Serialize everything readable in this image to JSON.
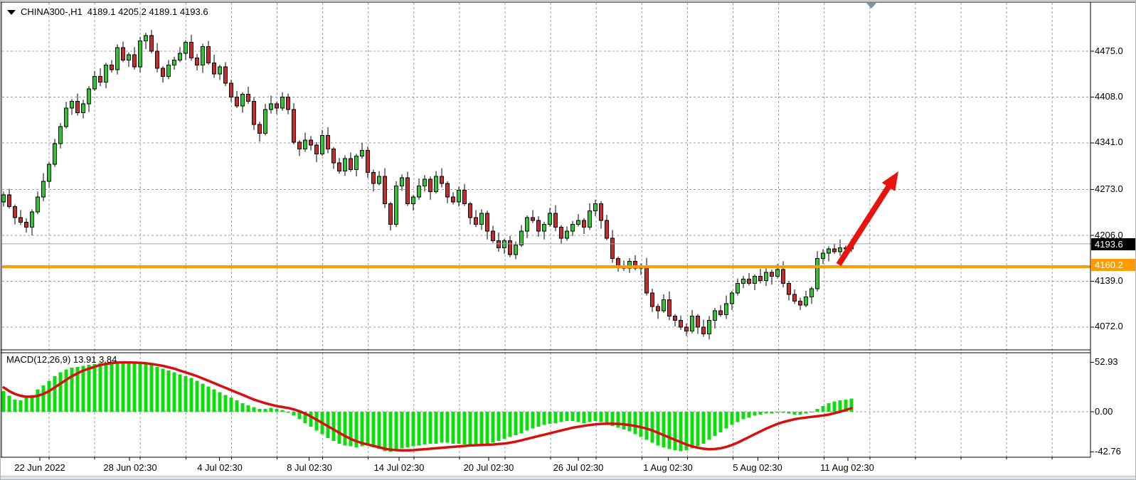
{
  "window": {
    "symbol_timeframe": "CHINA300-,H1",
    "quote": "4189.1 4205.2 4189.1 4193.6"
  },
  "indicator": {
    "name": "MACD",
    "params": "12,26,9",
    "label_full": "MACD(12,26,9) 13.91 3.84",
    "macd_value": "13.91",
    "signal_value": "3.84"
  },
  "price_axis": {
    "ticks": [
      "4475.0",
      "4408.0",
      "4341.0",
      "4273.0",
      "4206.0",
      "4139.0",
      "4072.0"
    ],
    "current_price_label": "4193.6",
    "hline_label": "4160.2"
  },
  "macd_axis": {
    "ticks": [
      "52.93",
      "0.00",
      "-42.76"
    ]
  },
  "time_axis": {
    "labels": [
      "22 Jun 2022",
      "28 Jun 02:30",
      "4 Jul 02:30",
      "8 Jul 02:30",
      "14 Jul 02:30",
      "20 Jul 02:30",
      "26 Jul 02:30",
      "1 Aug 02:30",
      "5 Aug 02:30",
      "11 Aug 02:30"
    ]
  },
  "colors": {
    "bull": "#22cf22",
    "bear": "#cc2a2a",
    "wick": "#000000",
    "macd_bar": "#0fdb0f",
    "signal_line": "#d80f0f",
    "grid": "#9c9c9c",
    "current_line": "#a6a6a6",
    "hline": "#ff9d00",
    "arrow": "#e8120e",
    "border": "#000000"
  },
  "chart_data": {
    "type": "candlestick",
    "symbol": "CHINA300-",
    "timeframe": "H1",
    "last_ohlc": {
      "open": 4189.1,
      "high": 4205.2,
      "low": 4189.1,
      "close": 4193.6
    },
    "price_ticks": [
      4475.0,
      4408.0,
      4341.0,
      4273.0,
      4206.0,
      4139.0,
      4072.0
    ],
    "current_price": 4193.6,
    "support_line": 4160.2,
    "x_labels": [
      "22 Jun 2022",
      "28 Jun 02:30",
      "4 Jul 02:30",
      "8 Jul 02:30",
      "14 Jul 02:30",
      "20 Jul 02:30",
      "26 Jul 02:30",
      "1 Aug 02:30",
      "5 Aug 02:30",
      "11 Aug 02:30"
    ],
    "first_open": 4255,
    "closes": [
      4265,
      4248,
      4232,
      4225,
      4218,
      4240,
      4262,
      4285,
      4310,
      4340,
      4365,
      4392,
      4402,
      4385,
      4398,
      4420,
      4438,
      4430,
      4455,
      4448,
      4480,
      4462,
      4470,
      4452,
      4490,
      4498,
      4475,
      4450,
      4438,
      4455,
      4462,
      4472,
      4488,
      4465,
      4455,
      4482,
      4458,
      4442,
      4452,
      4428,
      4408,
      4395,
      4412,
      4402,
      4368,
      4355,
      4390,
      4398,
      4392,
      4408,
      4390,
      4342,
      4332,
      4345,
      4338,
      4325,
      4352,
      4332,
      4312,
      4300,
      4318,
      4302,
      4322,
      4330,
      4298,
      4282,
      4292,
      4252,
      4222,
      4278,
      4290,
      4252,
      4262,
      4278,
      4288,
      4270,
      4292,
      4282,
      4262,
      4255,
      4272,
      4252,
      4232,
      4222,
      4238,
      4212,
      4198,
      4188,
      4198,
      4178,
      4192,
      4212,
      4232,
      4228,
      4212,
      4222,
      4238,
      4218,
      4202,
      4212,
      4222,
      4228,
      4218,
      4242,
      4252,
      4228,
      4202,
      4172,
      4162,
      4158,
      4168,
      4158,
      4162,
      4122,
      4102,
      4096,
      4112,
      4088,
      4082,
      4072,
      4066,
      4088,
      4072,
      4062,
      4082,
      4096,
      4090,
      4106,
      4122,
      4136,
      4142,
      4136,
      4146,
      4140,
      4152,
      4146,
      4156,
      4136,
      4120,
      4110,
      4104,
      4116,
      4128,
      4172,
      4180,
      4186,
      4182,
      4188,
      4186,
      4193.6
    ],
    "wick_hi": [
      5,
      9,
      3,
      11,
      6,
      4,
      8,
      12,
      3,
      7
    ],
    "wick_lo": [
      7,
      3,
      10,
      4,
      8,
      12,
      3,
      6,
      9,
      4
    ],
    "macd": {
      "label": "MACD(12,26,9)",
      "macd_value": 13.91,
      "signal_value": 3.84,
      "ticks": [
        52.93,
        0.0,
        -42.76
      ],
      "histogram": [
        22,
        17,
        13,
        12,
        15,
        18,
        24,
        28,
        33,
        38,
        42,
        45,
        47,
        48,
        49,
        50,
        51,
        52,
        52.5,
        52.9,
        52.9,
        52.5,
        52,
        51.5,
        51,
        50.5,
        50,
        48,
        46,
        44,
        42,
        40,
        38,
        36,
        33,
        30,
        27,
        24,
        21,
        18,
        15,
        12,
        9,
        7,
        5,
        3,
        3,
        4,
        3,
        2,
        -1,
        -4,
        -8,
        -12,
        -16,
        -20,
        -24,
        -28,
        -31,
        -34,
        -36,
        -37,
        -38,
        -37,
        -36,
        -38,
        -40,
        -42,
        -43,
        -41,
        -39,
        -38,
        -37,
        -36,
        -35,
        -34,
        -34,
        -33,
        -33,
        -34,
        -34,
        -35,
        -36,
        -36,
        -35,
        -34,
        -33,
        -31,
        -29,
        -27,
        -25,
        -23,
        -20,
        -18,
        -16,
        -14,
        -13,
        -12,
        -11,
        -10,
        -10,
        -11,
        -12,
        -11,
        -10,
        -11,
        -13,
        -15,
        -17,
        -19,
        -21,
        -24,
        -27,
        -30,
        -33,
        -36,
        -38,
        -40,
        -41,
        -42,
        -41,
        -39,
        -37,
        -34,
        -30,
        -26,
        -22,
        -18,
        -14,
        -11,
        -8,
        -6,
        -4,
        -3,
        -2,
        -2,
        -1,
        -1,
        -2,
        -3,
        -3,
        -2,
        0,
        3,
        6,
        9,
        11,
        12,
        13,
        13.91
      ],
      "signal": [
        26,
        22,
        19,
        17,
        16,
        16,
        17,
        19,
        22,
        26,
        30,
        34,
        38,
        41,
        44,
        46,
        48,
        50,
        51,
        52,
        52.5,
        52.7,
        52.7,
        52.5,
        52.2,
        51.8,
        51,
        50,
        49,
        47.5,
        46,
        44,
        42,
        40,
        38,
        35.5,
        33,
        30.5,
        28,
        25.5,
        23,
        20.5,
        18,
        15.5,
        13,
        11,
        9,
        7.5,
        6,
        5,
        4,
        2.5,
        0.5,
        -2,
        -5,
        -8.5,
        -12,
        -15.5,
        -19,
        -22.5,
        -26,
        -29,
        -31.5,
        -33.5,
        -35,
        -36.5,
        -38,
        -39.5,
        -40.5,
        -41,
        -41.2,
        -41.2,
        -41,
        -40.5,
        -40,
        -39.5,
        -39,
        -38.5,
        -38,
        -37.5,
        -37,
        -36.5,
        -36,
        -35.8,
        -35.5,
        -35.2,
        -35,
        -34.5,
        -34,
        -33,
        -32,
        -30.5,
        -29,
        -27.5,
        -26,
        -24.5,
        -23,
        -21.5,
        -20,
        -18.5,
        -17,
        -16,
        -15,
        -14.2,
        -13.5,
        -13,
        -12.8,
        -12.8,
        -13,
        -13.5,
        -14.2,
        -15.2,
        -16.5,
        -18,
        -20,
        -22.5,
        -25,
        -27.5,
        -30,
        -32.5,
        -35,
        -37,
        -38.5,
        -39.5,
        -40,
        -39.8,
        -39,
        -37.5,
        -35.5,
        -33,
        -30,
        -27,
        -24,
        -21,
        -18,
        -15.5,
        -13,
        -11,
        -9.5,
        -8,
        -7,
        -6.2,
        -5.5,
        -4.8,
        -4,
        -3,
        -1.5,
        0,
        1.8,
        3.84
      ]
    },
    "annotations": {
      "arrow": {
        "from": [
          1178,
          371
        ],
        "to": [
          1262,
          240
        ]
      }
    }
  }
}
